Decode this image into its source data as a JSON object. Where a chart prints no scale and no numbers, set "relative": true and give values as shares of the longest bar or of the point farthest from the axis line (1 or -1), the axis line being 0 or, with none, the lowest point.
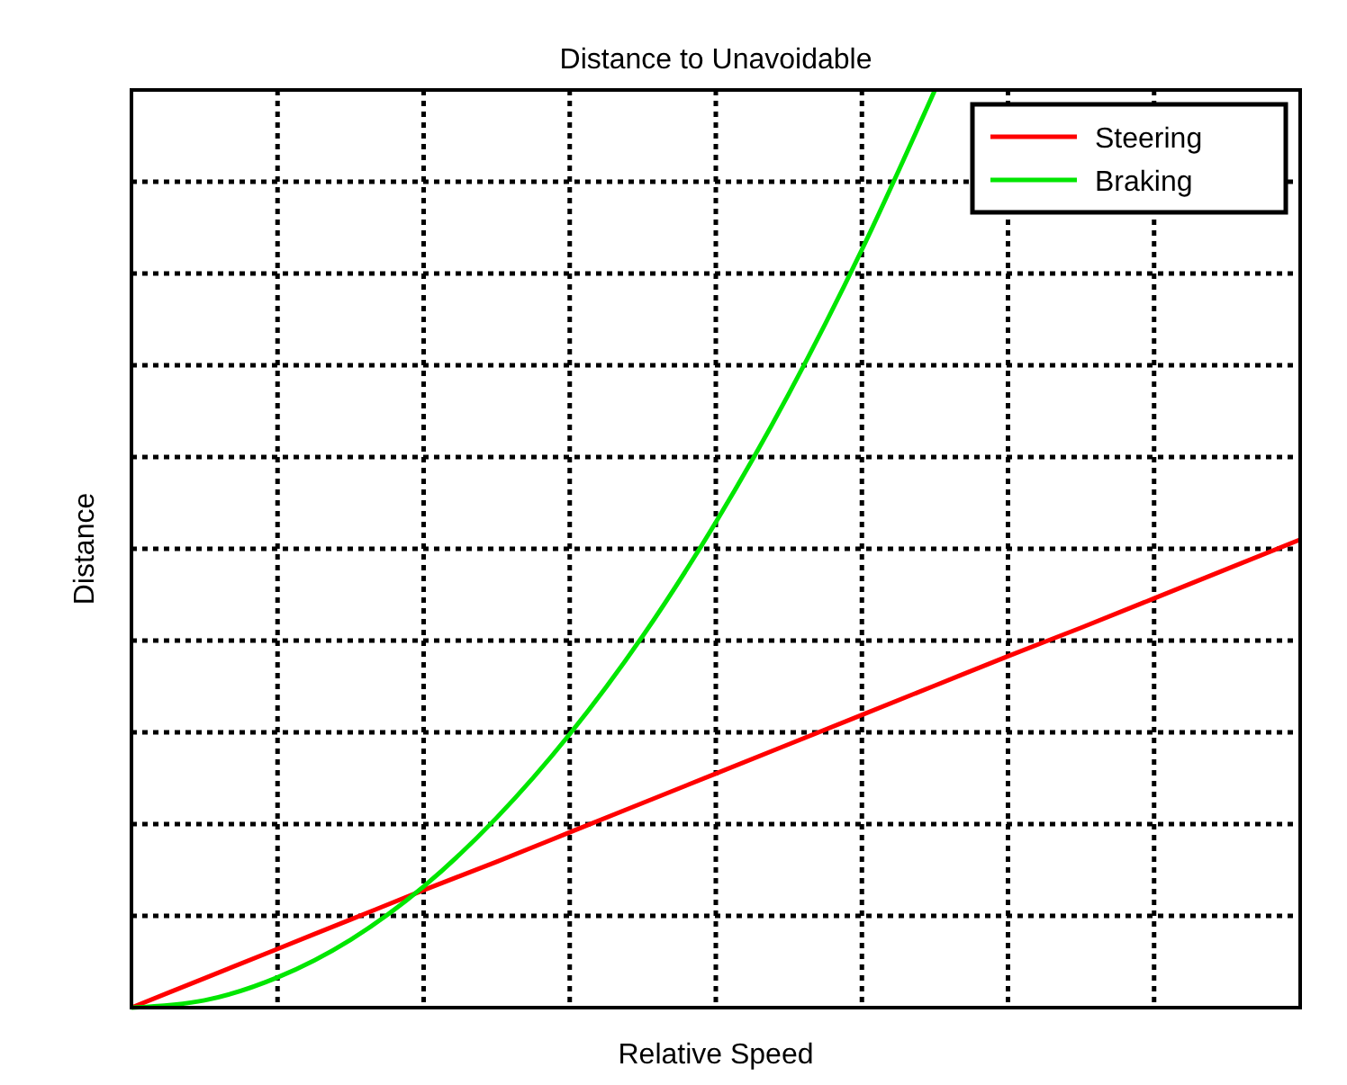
{
  "chart_data": {
    "type": "line",
    "title": "Distance to Unavoidable",
    "xlabel": "Relative Speed",
    "ylabel": "Distance",
    "relative": true,
    "categories": [
      null,
      null,
      null,
      null,
      null,
      null,
      null,
      null,
      null,
      null,
      null,
      null,
      null,
      null,
      null,
      null,
      null
    ],
    "series": [
      {
        "name": "Steering",
        "color": "#ff0000",
        "values": [
          0,
          0.032,
          0.064,
          0.096,
          0.128,
          0.159,
          0.191,
          0.223,
          0.255,
          0.287,
          0.319,
          0.351,
          0.383,
          0.414,
          0.446,
          0.478,
          0.51
        ]
      },
      {
        "name": "Braking",
        "color": "#00e600",
        "values": [
          0,
          0.008,
          0.033,
          0.074,
          0.132,
          0.207,
          0.298,
          0.405,
          0.529,
          0.669,
          0.826,
          1,
          null,
          null,
          null,
          null,
          null
        ]
      }
    ],
    "grid": true,
    "legend": "top right",
    "line_style": "solid",
    "marker": "none"
  }
}
